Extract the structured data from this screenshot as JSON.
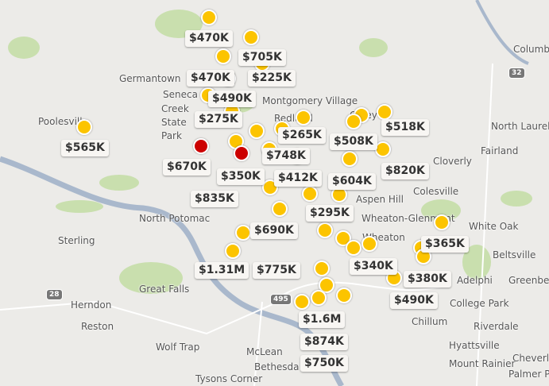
{
  "map": {
    "colors": {
      "land": "#ecebe8",
      "park": "#c9dfae",
      "water": "#a9b8cc",
      "marker": "#fcc400",
      "marker_selected": "#cc0000"
    },
    "places": [
      "Poolesville",
      "Germantown",
      "Seneca",
      "Creek",
      "State",
      "Park",
      "Montgomery Village",
      "Redland",
      "Olney",
      "Columbia",
      "North Laurel",
      "Fairland",
      "Cloverly",
      "Colesville",
      "Aspen Hill",
      "Wheaton-Glenmont",
      "Wheaton",
      "White Oak",
      "Beltsville",
      "Adelphi",
      "Greenbelt",
      "College Park",
      "Chillum",
      "Riverdale",
      "Hyattsville",
      "Mount Rainier",
      "Cheverly",
      "Palmer Park",
      "Sterling",
      "Great Falls",
      "Herndon",
      "Reston",
      "Wolf Trap",
      "McLean",
      "Tysons Corner",
      "North Potomac",
      "Bethesda"
    ],
    "shields": [
      "32",
      "28",
      "495"
    ],
    "prices": [
      "$470K",
      "$705K",
      "$470K",
      "$225K",
      "$490K",
      "$275K",
      "$565K",
      "$265K",
      "$518K",
      "$508K",
      "$748K",
      "$670K",
      "$350K",
      "$412K",
      "$604K",
      "$820K",
      "$835K",
      "$295K",
      "$690K",
      "$1.31M",
      "$775K",
      "$340K",
      "$380K",
      "$365K",
      "$490K",
      "$1.6M",
      "$874K",
      "$750K"
    ]
  }
}
